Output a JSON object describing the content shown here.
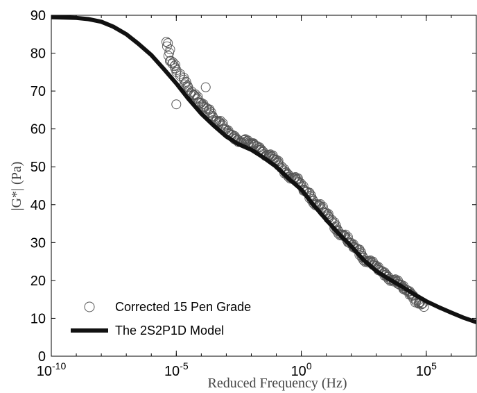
{
  "chart_data": {
    "type": "scatter",
    "title": "",
    "xlabel": "Reduced Frequency (Hz)",
    "ylabel": "|G*| (Pa)",
    "x_scale": "log",
    "xlim": [
      1e-10,
      10000000.0
    ],
    "ylim": [
      0,
      90
    ],
    "x_ticks": [
      {
        "value": 1e-10,
        "base": "10",
        "exp": "-10"
      },
      {
        "value": 1e-05,
        "base": "10",
        "exp": "-5"
      },
      {
        "value": 1,
        "base": "10",
        "exp": "0"
      },
      {
        "value": 100000.0,
        "base": "10",
        "exp": "5"
      }
    ],
    "y_ticks": [
      "0",
      "10",
      "20",
      "30",
      "40",
      "50",
      "60",
      "70",
      "80",
      "90"
    ],
    "grid": false,
    "legend_position": "bottom-left",
    "series": [
      {
        "name": "Corrected 15 Pen Grade",
        "kind": "scatter",
        "marker": "open-circle",
        "color": "#555555",
        "x": [
          4e-06,
          6e-06,
          9e-06,
          2e-05,
          3e-05,
          5e-05,
          8e-05,
          0.00012,
          0.0002,
          0.0003,
          0.0005,
          0.0008,
          0.0012,
          0.002,
          0.003,
          0.005,
          0.008,
          0.012,
          0.02,
          0.03,
          0.05,
          0.08,
          0.12,
          0.2,
          0.3,
          0.5,
          0.8,
          1.2,
          2,
          3,
          5,
          8,
          12,
          20,
          30,
          50,
          80,
          120,
          200,
          300,
          500,
          800,
          1200,
          2000,
          3000,
          5000,
          8000,
          12000,
          20000,
          30000,
          50000,
          80000,
          1e-05,
          0.00015
        ],
        "y": [
          83,
          78,
          76,
          73,
          71,
          69,
          67,
          66,
          65,
          63,
          62,
          60,
          59,
          58,
          57,
          57,
          56,
          56,
          55,
          54,
          53,
          52,
          51,
          49,
          48,
          47,
          46,
          44,
          43,
          41,
          40,
          38,
          37,
          35,
          33,
          32,
          30,
          29,
          28,
          26,
          25,
          24,
          23,
          22,
          21,
          20,
          19,
          18,
          17,
          16,
          14,
          13,
          66.5,
          71
        ]
      },
      {
        "name": "The 2S2P1D Model",
        "kind": "line",
        "color": "#111111",
        "x": [
          1e-10,
          1e-09,
          3e-09,
          1e-08,
          3e-08,
          1e-07,
          3e-07,
          1e-06,
          3e-06,
          1e-05,
          3e-05,
          0.0001,
          0.0003,
          0.001,
          0.003,
          0.01,
          0.03,
          0.1,
          0.3,
          1,
          3,
          10,
          30,
          100,
          300,
          1000,
          3000,
          10000,
          30000,
          100000.0,
          300000.0,
          1000000.0,
          3000000.0,
          10000000.0
        ],
        "y": [
          89.5,
          89.3,
          89,
          88.3,
          87,
          85,
          82.5,
          79.5,
          76,
          72,
          68,
          64,
          61,
          58,
          56,
          54.5,
          52.5,
          50,
          47,
          44,
          40,
          36,
          32.5,
          29,
          25.5,
          22.5,
          20.5,
          18.5,
          16.5,
          14.5,
          13,
          11.5,
          10.2,
          9
        ]
      }
    ]
  }
}
